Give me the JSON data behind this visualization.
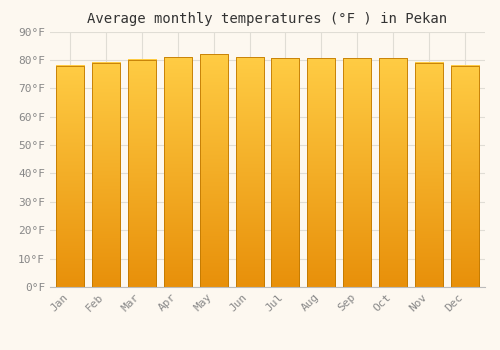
{
  "title": "Average monthly temperatures (°F ) in Pekan",
  "months": [
    "Jan",
    "Feb",
    "Mar",
    "Apr",
    "May",
    "Jun",
    "Jul",
    "Aug",
    "Sep",
    "Oct",
    "Nov",
    "Dec"
  ],
  "values": [
    78,
    79,
    80,
    81,
    82,
    81,
    80.5,
    80.5,
    80.5,
    80.5,
    79,
    78
  ],
  "ylim": [
    0,
    90
  ],
  "ytick_step": 10,
  "bar_color_bottom": "#E8900A",
  "bar_color_top": "#FFCC44",
  "bar_edge_color": "#C07800",
  "background_color": "#fdf8f0",
  "plot_bg_color": "#fdf8f0",
  "grid_color": "#e0ddd5",
  "title_fontsize": 10,
  "tick_fontsize": 8,
  "tick_color": "#888888",
  "font_family": "monospace",
  "bar_width": 0.78
}
